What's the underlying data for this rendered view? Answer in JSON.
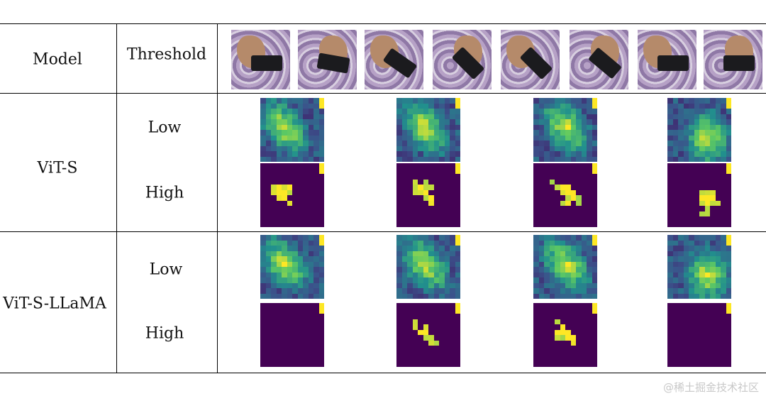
{
  "header": {
    "model": "Model",
    "threshold": "Threshold"
  },
  "rows": [
    {
      "model": "ViT-S",
      "low": "Low",
      "high": "High"
    },
    {
      "model": "ViT-S-LLaMA",
      "low": "Low",
      "high": "High"
    }
  ],
  "watermark": "@稀土掘金技术社区",
  "colors": {
    "heatmap_low": "#440154",
    "heatmap_mid": "#21908c",
    "heatmap_high": "#fde725"
  }
}
